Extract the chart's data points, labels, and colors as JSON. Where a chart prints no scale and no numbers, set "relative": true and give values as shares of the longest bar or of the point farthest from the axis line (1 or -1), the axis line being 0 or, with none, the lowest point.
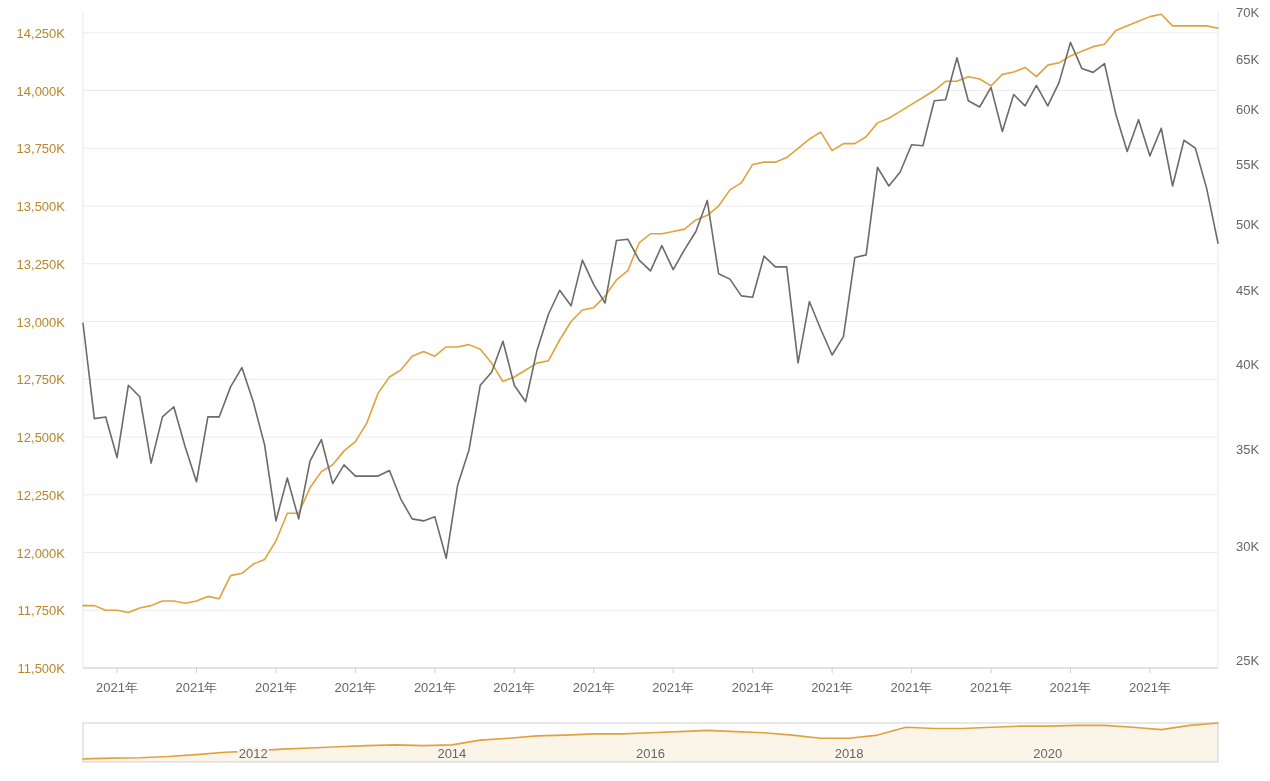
{
  "chart_data": [
    {
      "type": "line",
      "categories": [
        null,
        null,
        null,
        "2021年",
        null,
        null,
        null,
        null,
        null,
        null,
        "2021年",
        null,
        null,
        null,
        null,
        null,
        null,
        "2021年",
        null,
        null,
        null,
        null,
        null,
        null,
        "2021年",
        null,
        null,
        null,
        null,
        null,
        null,
        "2021年",
        null,
        null,
        null,
        null,
        null,
        null,
        "2021年",
        null,
        null,
        null,
        null,
        null,
        null,
        "2021年",
        null,
        null,
        null,
        null,
        null,
        null,
        "2021年",
        null,
        null,
        null,
        null,
        null,
        null,
        "2021年",
        null,
        null,
        null,
        null,
        null,
        null,
        "2021年",
        null,
        null,
        null,
        null,
        null,
        null,
        "2021年",
        null,
        null,
        null,
        null,
        null,
        null,
        "2021年",
        null,
        null,
        null,
        null,
        null,
        null,
        "2021年",
        null,
        null,
        null,
        null,
        null,
        null,
        "2021年",
        null,
        null,
        null,
        null,
        null,
        null
      ],
      "series": [
        {
          "color": "#e0a23e",
          "values": [
            11770,
            11770,
            11750,
            11750,
            11740,
            11760,
            11770,
            11790,
            11790,
            11780,
            11790,
            11810,
            11800,
            11900,
            11910,
            11950,
            11970,
            12050,
            12170,
            12170,
            12280,
            12350,
            12380,
            12440,
            12480,
            12560,
            12690,
            12760,
            12790,
            12850,
            12870,
            12850,
            12890,
            12890,
            12900,
            12880,
            12820,
            12740,
            12760,
            12790,
            12820,
            12830,
            12920,
            13000,
            13050,
            13060,
            13110,
            13180,
            13220,
            13340,
            13380,
            13380,
            13390,
            13400,
            13440,
            13460,
            13500,
            13570,
            13600,
            13680,
            13690,
            13690,
            13710,
            13750,
            13790,
            13820,
            13740,
            13770,
            13770,
            13800,
            13860,
            13880,
            13910,
            13940,
            13970,
            14000,
            14040,
            14040,
            14060,
            14050,
            14020,
            14070,
            14080,
            14100,
            14060,
            14110,
            14120,
            14150,
            14170,
            14190,
            14200,
            14260,
            14280,
            14300,
            14320,
            14330,
            14280,
            14280,
            14280,
            14280,
            14270
          ]
        },
        {
          "color": "#6b6b6b",
          "axis": "y2",
          "values": [
            42.7,
            36.7,
            36.8,
            34.5,
            38.7,
            38.0,
            34.2,
            36.8,
            37.4,
            35.1,
            33.2,
            36.8,
            36.8,
            38.6,
            39.8,
            37.7,
            35.2,
            31.2,
            33.4,
            31.3,
            34.3,
            35.5,
            33.1,
            34.1,
            33.5,
            33.5,
            33.5,
            33.8,
            32.3,
            31.3,
            31.2,
            31.4,
            29.4,
            33.0,
            34.9,
            38.7,
            39.5,
            41.5,
            38.7,
            37.7,
            40.9,
            43.3,
            45.0,
            43.9,
            47.2,
            45.4,
            44.1,
            48.7,
            48.8,
            47.2,
            46.4,
            48.3,
            46.5,
            48.0,
            49.4,
            51.9,
            46.2,
            45.8,
            44.6,
            44.5,
            47.5,
            46.7,
            46.7,
            40.1,
            44.2,
            42.3,
            40.6,
            41.8,
            47.4,
            47.6,
            54.7,
            53.1,
            54.3,
            56.7,
            56.6,
            60.8,
            60.9,
            65.1,
            60.8,
            60.2,
            62.1,
            57.9,
            61.4,
            60.3,
            62.3,
            60.3,
            62.6,
            66.7,
            64.0,
            63.6,
            64.5,
            59.5,
            56.1,
            59.0,
            55.7,
            58.2,
            53.1,
            57.1,
            56.4,
            52.9,
            48.5
          ]
        }
      ],
      "ylim": [
        11500,
        14340
      ],
      "yticks": [
        {
          "value": 11500,
          "label": "11,500K"
        },
        {
          "value": 11750,
          "label": "11,750K"
        },
        {
          "value": 12000,
          "label": "12,000K"
        },
        {
          "value": 12250,
          "label": "12,250K"
        },
        {
          "value": 12500,
          "label": "12,500K"
        },
        {
          "value": 12750,
          "label": "12,750K"
        },
        {
          "value": 13000,
          "label": "13,000K"
        },
        {
          "value": 13250,
          "label": "13,250K"
        },
        {
          "value": 13500,
          "label": "13,500K"
        },
        {
          "value": 13750,
          "label": "13,750K"
        },
        {
          "value": 14000,
          "label": "14,000K"
        },
        {
          "value": 14250,
          "label": "14,250K"
        }
      ],
      "y2lim": [
        24.7,
        70
      ],
      "y2ticks": [
        {
          "value": 25,
          "label": "25K"
        },
        {
          "value": 30,
          "label": "30K"
        },
        {
          "value": 35,
          "label": "35K"
        },
        {
          "value": 40,
          "label": "40K"
        },
        {
          "value": 45,
          "label": "45K"
        },
        {
          "value": 50,
          "label": "50K"
        },
        {
          "value": 55,
          "label": "55K"
        },
        {
          "value": 60,
          "label": "60K"
        },
        {
          "value": 65,
          "label": "65K"
        },
        {
          "value": 70,
          "label": "70K"
        }
      ],
      "log": "y2",
      "grid": "y"
    },
    {
      "type": "area",
      "relative": true,
      "categories": [
        null,
        null,
        null,
        null,
        null,
        null,
        "2012",
        null,
        null,
        null,
        null,
        null,
        null,
        "2014",
        null,
        null,
        null,
        null,
        null,
        null,
        "2016",
        null,
        null,
        null,
        null,
        null,
        null,
        "2018",
        null,
        null,
        null,
        null,
        null,
        null,
        "2020",
        null,
        null,
        null,
        null,
        null,
        null
      ],
      "series": [
        {
          "color": "#e0a23e",
          "values": [
            0.08,
            0.1,
            0.11,
            0.14,
            0.19,
            0.25,
            0.28,
            0.33,
            0.36,
            0.39,
            0.42,
            0.44,
            0.42,
            0.44,
            0.56,
            0.61,
            0.67,
            0.69,
            0.72,
            0.72,
            0.75,
            0.78,
            0.81,
            0.78,
            0.75,
            0.69,
            0.61,
            0.61,
            0.69,
            0.89,
            0.86,
            0.86,
            0.89,
            0.92,
            0.92,
            0.94,
            0.94,
            0.89,
            0.83,
            0.94,
            1
          ]
        }
      ]
    }
  ]
}
